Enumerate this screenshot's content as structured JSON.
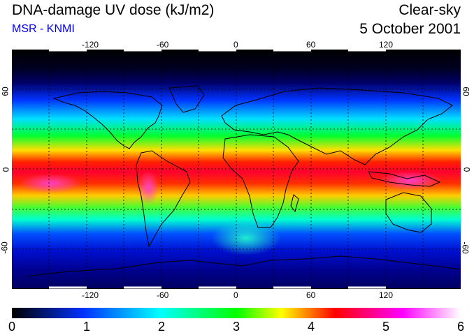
{
  "header": {
    "title": "DNA-damage UV dose (kJ/m2)",
    "source": "MSR - KNMI",
    "condition": "Clear-sky",
    "date": "5 October 2001"
  },
  "map": {
    "projection": "equirectangular",
    "lon_range": [
      -180,
      180
    ],
    "lat_range": [
      -90,
      90
    ],
    "lon_ticks": [
      "-120",
      "-60",
      "0",
      "60",
      "120"
    ],
    "lat_ticks": [
      "60",
      "0",
      "-60"
    ],
    "grid": "dashed every 30 degrees"
  },
  "colorbar": {
    "min": 0,
    "max": 6,
    "labels": [
      "0",
      "1",
      "2",
      "3",
      "4",
      "5",
      "6"
    ],
    "colors": [
      "#000000",
      "#0033ff",
      "#00ffff",
      "#00ff00",
      "#ffff00",
      "#ff0000",
      "#ff00ff",
      "#ffffff"
    ]
  }
}
